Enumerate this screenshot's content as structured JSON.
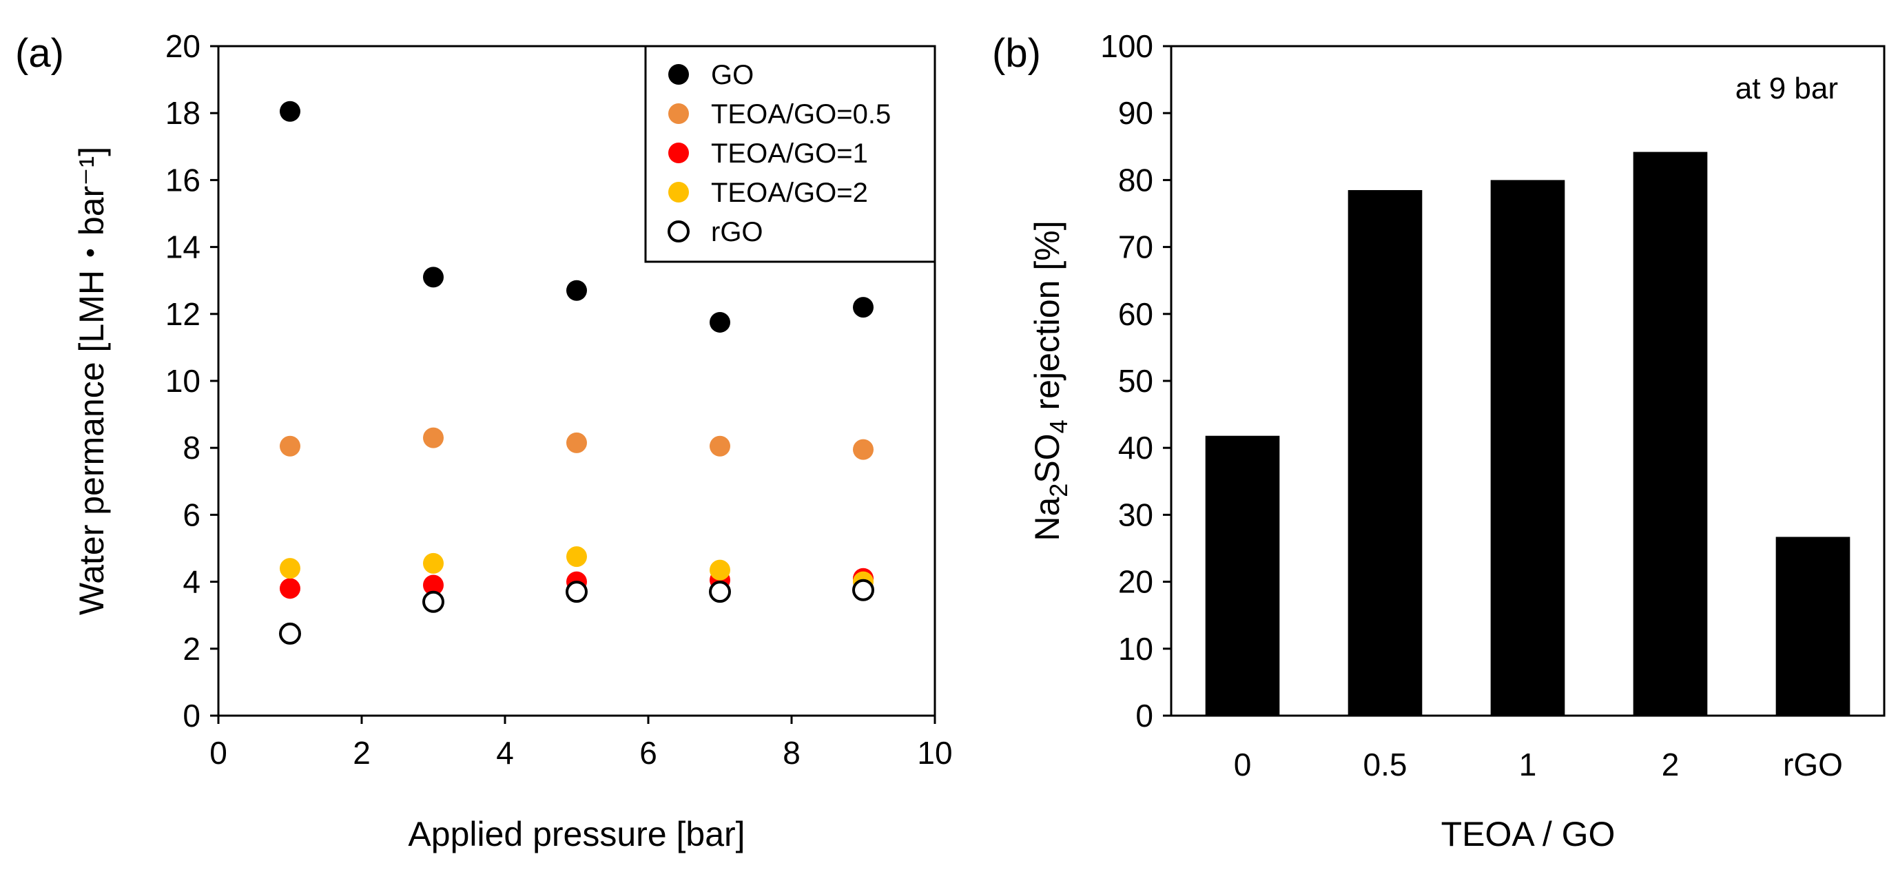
{
  "chart_data": [
    {
      "panel_label": "(a)",
      "type": "scatter",
      "xlabel": "Applied pressure [bar]",
      "ylabel": "Water permance [LMH・bar⁻¹]",
      "xlim": [
        0,
        10
      ],
      "ylim": [
        0,
        20
      ],
      "xticks": [
        "0",
        "2",
        "4",
        "6",
        "8",
        "10"
      ],
      "yticks": [
        "0",
        "2",
        "4",
        "6",
        "8",
        "10",
        "12",
        "14",
        "16",
        "18",
        "20"
      ],
      "legend_position": "top-right",
      "series": [
        {
          "name": "GO",
          "color": "#000000",
          "marker": "filled-circle",
          "x": [
            1,
            3,
            5,
            7,
            9
          ],
          "y": [
            18.05,
            13.1,
            12.7,
            11.75,
            12.2
          ]
        },
        {
          "name": "TEOA/GO=0.5",
          "color": "#ed8c3d",
          "marker": "filled-circle",
          "x": [
            1,
            3,
            5,
            7,
            9
          ],
          "y": [
            8.05,
            8.3,
            8.15,
            8.05,
            7.95
          ]
        },
        {
          "name": "TEOA/GO=1",
          "color": "#ff0000",
          "marker": "filled-circle",
          "x": [
            1,
            3,
            5,
            7,
            9
          ],
          "y": [
            3.8,
            3.9,
            4.0,
            4.05,
            4.1
          ]
        },
        {
          "name": "TEOA/GO=2",
          "color": "#ffc000",
          "marker": "filled-circle",
          "x": [
            1,
            3,
            5,
            7,
            9
          ],
          "y": [
            4.4,
            4.55,
            4.75,
            4.35,
            4.0
          ]
        },
        {
          "name": "rGO",
          "color": "#000000",
          "marker": "open-circle",
          "x": [
            1,
            3,
            5,
            7,
            9
          ],
          "y": [
            2.45,
            3.4,
            3.7,
            3.7,
            3.75
          ]
        }
      ]
    },
    {
      "panel_label": "(b)",
      "type": "bar",
      "xlabel": "TEOA / GO",
      "ylabel": {
        "pre": "Na",
        "sub1": "2",
        "mid": "SO",
        "sub2": "4",
        "post": " rejection [%]"
      },
      "annotation": "at 9 bar",
      "ylim": [
        0,
        100
      ],
      "yticks": [
        "0",
        "10",
        "20",
        "30",
        "40",
        "50",
        "60",
        "70",
        "80",
        "90",
        "100"
      ],
      "categories": [
        "0",
        "0.5",
        "1",
        "2",
        "rGO"
      ],
      "values": [
        41.8,
        78.5,
        80.0,
        84.2,
        26.7
      ],
      "bar_color": "#000000"
    }
  ]
}
